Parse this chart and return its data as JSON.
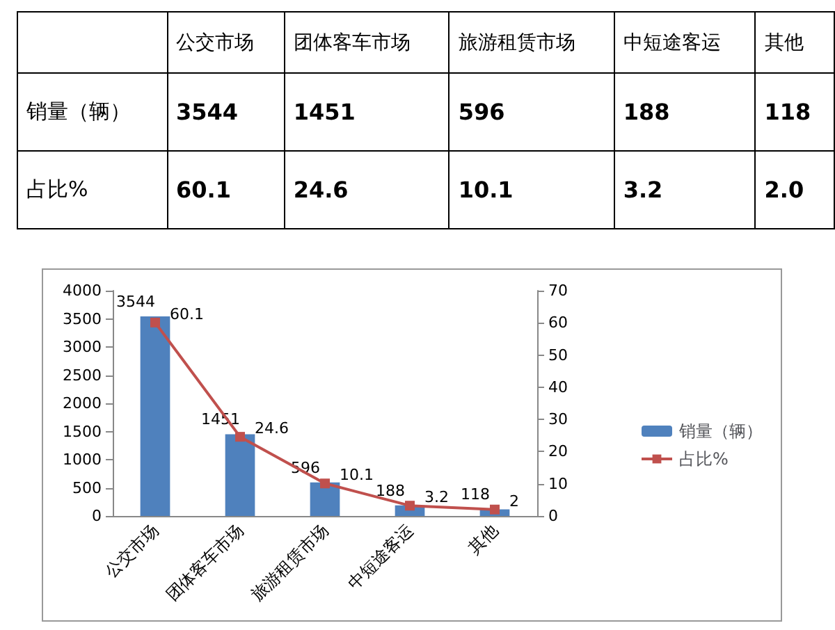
{
  "chart_data": [
    {
      "type": "other",
      "categories": [
        "公交市场",
        "团体客车市场",
        "旅游租赁市场",
        "中短途客运",
        "其他"
      ],
      "series": [
        {
          "name": "销量（辆）",
          "values": [
            3544,
            1451,
            596,
            188,
            118
          ],
          "value_labels": [
            "3544",
            "1451",
            "596",
            "188",
            "118"
          ]
        },
        {
          "name": "占比%",
          "values": [
            60.1,
            24.6,
            10.1,
            3.2,
            2.0
          ],
          "value_labels": [
            "60.1",
            "24.6",
            "10.1",
            "3.2",
            "2.0"
          ]
        }
      ]
    },
    {
      "type": "bar",
      "categories": [
        "公交市场",
        "团体客车市场",
        "旅游租赁市场",
        "中短途客运",
        "其他"
      ],
      "series": [
        {
          "name": "销量（辆）",
          "color": "#4f81bd",
          "values": [
            3544,
            1451,
            596,
            188,
            118
          ],
          "value_labels": [
            "3544",
            "1451",
            "596",
            "188",
            "118"
          ]
        },
        {
          "name": "占比%",
          "type": "line",
          "axis": "y2",
          "color": "#c0504d",
          "values": [
            60.1,
            24.6,
            10.1,
            3.2,
            2.0
          ],
          "value_labels": [
            "60.1",
            "24.6",
            "10.1",
            "3.2",
            "2"
          ]
        }
      ],
      "ylim": [
        0,
        4000
      ],
      "yticks": [
        0,
        500,
        1000,
        1500,
        2000,
        2500,
        3000,
        3500,
        4000
      ],
      "y2lim": [
        0,
        70
      ],
      "y2ticks": [
        0,
        10,
        20,
        30,
        40,
        50,
        60,
        70
      ],
      "legend": "right",
      "marker": "square",
      "grid": false
    }
  ]
}
